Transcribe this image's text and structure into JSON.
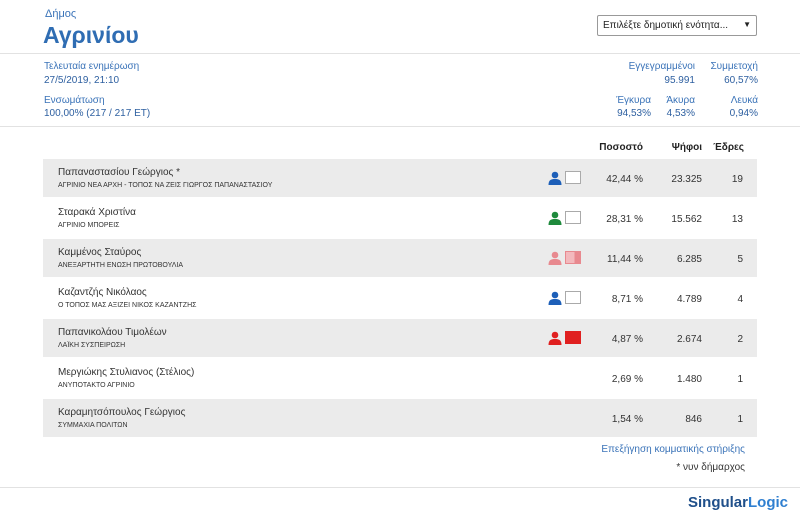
{
  "header": {
    "label": "Δήμος",
    "name": "Αγρινίου",
    "select_placeholder": "Επιλέξτε δημοτική ενότητα..."
  },
  "stats": {
    "updated_label": "Τελευταία ενημέρωση",
    "updated_value": "27/5/2019, 21:10",
    "integration_label": "Ενσωμάτωση",
    "integration_value": "100,00% (217 / 217 ΕΤ)",
    "registered_label": "Εγγεγραμμένοι",
    "registered_value": "95.991",
    "turnout_label": "Συμμετοχή",
    "turnout_value": "60,57%",
    "valid_label": "Έγκυρα",
    "valid_value": "94,53%",
    "invalid_label": "Άκυρα",
    "invalid_value": "4,53%",
    "blank_label": "Λευκά",
    "blank_value": "0,94%"
  },
  "table": {
    "headers": {
      "pct": "Ποσοστό",
      "votes": "Ψήφοι",
      "seats": "Έδρες"
    },
    "rows": [
      {
        "candidate": "Παπαναστασίου Γεώργιος *",
        "party": "ΑΓΡΙΝΙΟ ΝΕΑ ΑΡΧΗ - ΤΟΠΟΣ ΝΑ ΖΕΙΣ ΓΙΩΡΓΟΣ ΠΑΠΑΝΑΣΤΑΣΙΟΥ",
        "pct": "42,44 %",
        "votes": "23.325",
        "seats": "19",
        "icon_color": "#1d5fb8",
        "box": "empty"
      },
      {
        "candidate": "Σταρακά Χριστίνα",
        "party": "ΑΓΡΙΝΙΟ ΜΠΟΡΕΙΣ",
        "pct": "28,31 %",
        "votes": "15.562",
        "seats": "13",
        "icon_color": "#1e8a3c",
        "box": "empty"
      },
      {
        "candidate": "Καμμένος Σταύρος",
        "party": "ΑΝΕΞΑΡΤΗΤΗ ΕΝΩΣΗ ΠΡΩΤΟΒΟΥΛΙΑ",
        "pct": "11,44 %",
        "votes": "6.285",
        "seats": "5",
        "icon_color": "#e8898f",
        "box": "partial"
      },
      {
        "candidate": "Καζαντζής Νικόλαος",
        "party": "Ο ΤΟΠΟΣ ΜΑΣ ΑΞΙΖΕΙ ΝΙΚΟΣ ΚΑΖΑΝΤΖΗΣ",
        "pct": "8,71 %",
        "votes": "4.789",
        "seats": "4",
        "icon_color": "#1d5fb8",
        "box": "empty"
      },
      {
        "candidate": "Παπανικολάου Τιμολέων",
        "party": "ΛΑΪΚΗ ΣΥΣΠΕΙΡΩΣΗ",
        "pct": "4,87 %",
        "votes": "2.674",
        "seats": "2",
        "icon_color": "#e02020",
        "box": "full"
      },
      {
        "candidate": "Μεργιώκης Στυλιανος (Στέλιος)",
        "party": "ΑΝΥΠΟΤΑΚΤΟ ΑΓΡΙΝΙΟ",
        "pct": "2,69 %",
        "votes": "1.480",
        "seats": "1",
        "icon_color": "",
        "box": "none"
      },
      {
        "candidate": "Καραμητσόπουλος Γεώργιος",
        "party": "ΣΥΜΜΑΧΙΑ ΠΟΛΙΤΩΝ",
        "pct": "1,54 %",
        "votes": "846",
        "seats": "1",
        "icon_color": "",
        "box": "none"
      }
    ]
  },
  "footer": {
    "explain_link": "Επεξήγηση κομματικής στήριξης",
    "note": "* νυν δήμαρχος",
    "logo_a": "Singular",
    "logo_b": "Logic"
  },
  "colors": {
    "accent": "#3a73b8",
    "row_alt": "#ebebeb",
    "flag_red": "#e02020"
  }
}
